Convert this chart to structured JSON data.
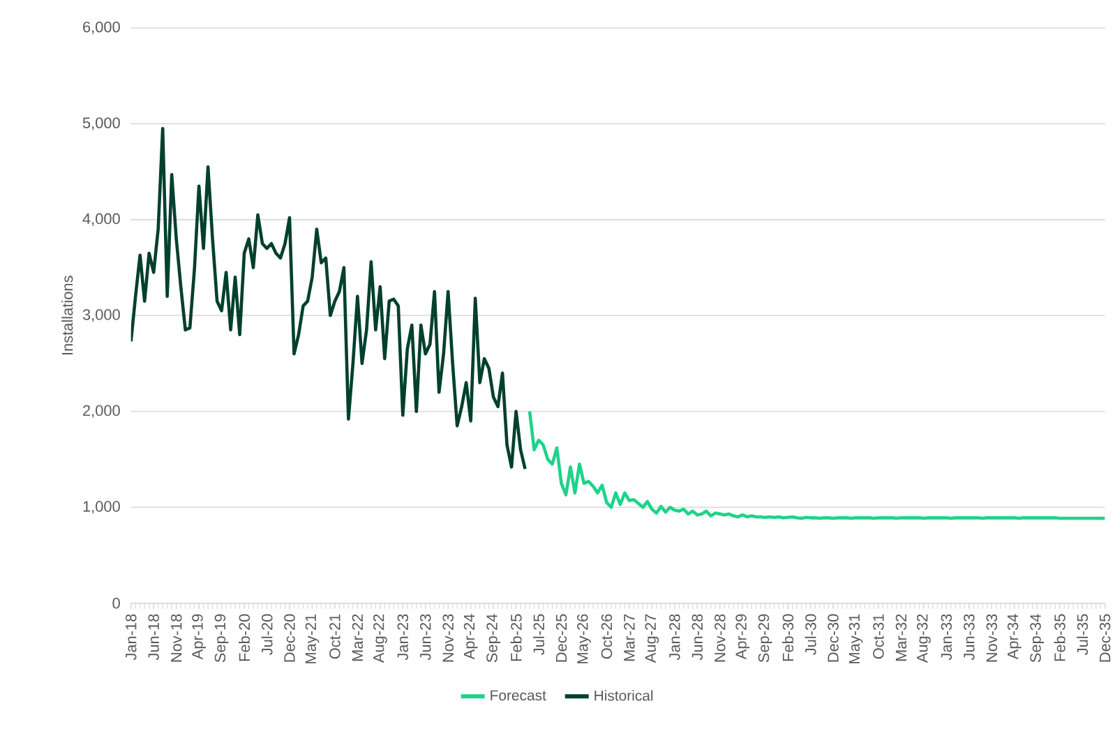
{
  "chart_data": {
    "type": "line",
    "ylabel": "Installations",
    "xlim": [
      "2018-01",
      "2035-12"
    ],
    "ylim": [
      0,
      6000
    ],
    "yticks": [
      {
        "value": 0,
        "label": "0"
      },
      {
        "value": 1000,
        "label": "1,000"
      },
      {
        "value": 2000,
        "label": "2,000"
      },
      {
        "value": 3000,
        "label": "3,000"
      },
      {
        "value": 4000,
        "label": "4,000"
      },
      {
        "value": 5000,
        "label": "5,000"
      },
      {
        "value": 6000,
        "label": "6,000"
      }
    ],
    "xticks": [
      {
        "value": "2018-01",
        "label": "Jan-18"
      },
      {
        "value": "2018-06",
        "label": "Jun-18"
      },
      {
        "value": "2018-11",
        "label": "Nov-18"
      },
      {
        "value": "2019-04",
        "label": "Apr-19"
      },
      {
        "value": "2019-09",
        "label": "Sep-19"
      },
      {
        "value": "2020-02",
        "label": "Feb-20"
      },
      {
        "value": "2020-07",
        "label": "Jul-20"
      },
      {
        "value": "2020-12",
        "label": "Dec-20"
      },
      {
        "value": "2021-05",
        "label": "May-21"
      },
      {
        "value": "2021-10",
        "label": "Oct-21"
      },
      {
        "value": "2022-03",
        "label": "Mar-22"
      },
      {
        "value": "2022-08",
        "label": "Aug-22"
      },
      {
        "value": "2023-01",
        "label": "Jan-23"
      },
      {
        "value": "2023-06",
        "label": "Jun-23"
      },
      {
        "value": "2023-11",
        "label": "Nov-23"
      },
      {
        "value": "2024-04",
        "label": "Apr-24"
      },
      {
        "value": "2024-09",
        "label": "Sep-24"
      },
      {
        "value": "2025-02",
        "label": "Feb-25"
      },
      {
        "value": "2025-07",
        "label": "Jul-25"
      },
      {
        "value": "2025-12",
        "label": "Dec-25"
      },
      {
        "value": "2026-05",
        "label": "May-26"
      },
      {
        "value": "2026-10",
        "label": "Oct-26"
      },
      {
        "value": "2027-03",
        "label": "Mar-27"
      },
      {
        "value": "2027-08",
        "label": "Aug-27"
      },
      {
        "value": "2028-01",
        "label": "Jan-28"
      },
      {
        "value": "2028-06",
        "label": "Jun-28"
      },
      {
        "value": "2028-11",
        "label": "Nov-28"
      },
      {
        "value": "2029-04",
        "label": "Apr-29"
      },
      {
        "value": "2029-09",
        "label": "Sep-29"
      },
      {
        "value": "2030-02",
        "label": "Feb-30"
      },
      {
        "value": "2030-07",
        "label": "Jul-30"
      },
      {
        "value": "2030-12",
        "label": "Dec-30"
      },
      {
        "value": "2031-05",
        "label": "May-31"
      },
      {
        "value": "2031-10",
        "label": "Oct-31"
      },
      {
        "value": "2032-03",
        "label": "Mar-32"
      },
      {
        "value": "2032-08",
        "label": "Aug-32"
      },
      {
        "value": "2033-01",
        "label": "Jan-33"
      },
      {
        "value": "2033-06",
        "label": "Jun-33"
      },
      {
        "value": "2033-11",
        "label": "Nov-33"
      },
      {
        "value": "2034-04",
        "label": "Apr-34"
      },
      {
        "value": "2034-09",
        "label": "Sep-34"
      },
      {
        "value": "2035-02",
        "label": "Feb-35"
      },
      {
        "value": "2035-07",
        "label": "Jul-35"
      },
      {
        "value": "2035-12",
        "label": "Dec-35"
      }
    ],
    "grid": "y",
    "legend": "bottom",
    "line_style": "solid",
    "marker": "none",
    "series": [
      {
        "name": "Forecast",
        "color": "#1ed38a",
        "x": [
          "2025-05",
          "2025-06",
          "2025-07",
          "2025-08",
          "2025-09",
          "2025-10",
          "2025-11",
          "2025-12",
          "2026-01",
          "2026-02",
          "2026-03",
          "2026-04",
          "2026-05",
          "2026-06",
          "2026-07",
          "2026-08",
          "2026-09",
          "2026-10",
          "2026-11",
          "2026-12",
          "2027-01",
          "2027-02",
          "2027-03",
          "2027-04",
          "2027-05",
          "2027-06",
          "2027-07",
          "2027-08",
          "2027-09",
          "2027-10",
          "2027-11",
          "2027-12",
          "2028-01",
          "2028-02",
          "2028-03",
          "2028-04",
          "2028-05",
          "2028-06",
          "2028-07",
          "2028-08",
          "2028-09",
          "2028-10",
          "2028-11",
          "2028-12",
          "2029-01",
          "2029-02",
          "2029-03",
          "2029-04",
          "2029-05",
          "2029-06",
          "2029-07",
          "2029-08",
          "2029-09",
          "2029-10",
          "2029-11",
          "2029-12",
          "2030-01",
          "2030-02",
          "2030-03",
          "2030-04",
          "2030-05",
          "2030-06",
          "2030-07",
          "2030-08",
          "2030-09",
          "2030-10",
          "2030-11",
          "2030-12",
          "2031-01",
          "2031-02",
          "2031-03",
          "2031-04",
          "2031-05",
          "2031-06",
          "2031-07",
          "2031-08",
          "2031-09",
          "2031-10",
          "2031-11",
          "2031-12",
          "2032-01",
          "2032-02",
          "2032-03",
          "2032-04",
          "2032-05",
          "2032-06",
          "2032-07",
          "2032-08",
          "2032-09",
          "2032-10",
          "2032-11",
          "2032-12",
          "2033-01",
          "2033-02",
          "2033-03",
          "2033-04",
          "2033-05",
          "2033-06",
          "2033-07",
          "2033-08",
          "2033-09",
          "2033-10",
          "2033-11",
          "2033-12",
          "2034-01",
          "2034-02",
          "2034-03",
          "2034-04",
          "2034-05",
          "2034-06",
          "2034-07",
          "2034-08",
          "2034-09",
          "2034-10",
          "2034-11",
          "2034-12",
          "2035-01",
          "2035-02",
          "2035-03",
          "2035-04",
          "2035-05",
          "2035-06",
          "2035-07",
          "2035-08",
          "2035-09",
          "2035-10",
          "2035-11",
          "2035-12"
        ],
        "values": [
          2000,
          1600,
          1700,
          1650,
          1500,
          1450,
          1620,
          1250,
          1130,
          1420,
          1150,
          1450,
          1250,
          1270,
          1220,
          1150,
          1230,
          1050,
          1000,
          1150,
          1030,
          1150,
          1070,
          1080,
          1040,
          1000,
          1060,
          980,
          940,
          1010,
          950,
          1000,
          970,
          960,
          980,
          930,
          960,
          920,
          930,
          960,
          910,
          940,
          930,
          920,
          930,
          910,
          900,
          920,
          900,
          910,
          900,
          900,
          895,
          900,
          895,
          900,
          890,
          895,
          900,
          890,
          885,
          895,
          890,
          890,
          885,
          890,
          890,
          885,
          890,
          890,
          890,
          885,
          890,
          890,
          890,
          890,
          885,
          890,
          890,
          890,
          890,
          885,
          890,
          890,
          890,
          890,
          890,
          885,
          890,
          890,
          890,
          890,
          890,
          885,
          890,
          890,
          890,
          890,
          890,
          890,
          885,
          890,
          890,
          890,
          890,
          890,
          890,
          890,
          885,
          890,
          890,
          890,
          890,
          890,
          890,
          890,
          890,
          885,
          885,
          885,
          885,
          885,
          885,
          885,
          885,
          885,
          885,
          885
        ]
      },
      {
        "name": "Historical",
        "color": "#01402e",
        "x": [
          "2018-01",
          "2018-02",
          "2018-03",
          "2018-04",
          "2018-05",
          "2018-06",
          "2018-07",
          "2018-08",
          "2018-09",
          "2018-10",
          "2018-11",
          "2018-12",
          "2019-01",
          "2019-02",
          "2019-03",
          "2019-04",
          "2019-05",
          "2019-06",
          "2019-07",
          "2019-08",
          "2019-09",
          "2019-10",
          "2019-11",
          "2019-12",
          "2020-01",
          "2020-02",
          "2020-03",
          "2020-04",
          "2020-05",
          "2020-06",
          "2020-07",
          "2020-08",
          "2020-09",
          "2020-10",
          "2020-11",
          "2020-12",
          "2021-01",
          "2021-02",
          "2021-03",
          "2021-04",
          "2021-05",
          "2021-06",
          "2021-07",
          "2021-08",
          "2021-09",
          "2021-10",
          "2021-11",
          "2021-12",
          "2022-01",
          "2022-02",
          "2022-03",
          "2022-04",
          "2022-05",
          "2022-06",
          "2022-07",
          "2022-08",
          "2022-09",
          "2022-10",
          "2022-11",
          "2022-12",
          "2023-01",
          "2023-02",
          "2023-03",
          "2023-04",
          "2023-05",
          "2023-06",
          "2023-07",
          "2023-08",
          "2023-09",
          "2023-10",
          "2023-11",
          "2023-12",
          "2024-01",
          "2024-02",
          "2024-03",
          "2024-04",
          "2024-05",
          "2024-06",
          "2024-07",
          "2024-08",
          "2024-09",
          "2024-10",
          "2024-11",
          "2024-12",
          "2025-01",
          "2025-02",
          "2025-03",
          "2025-04"
        ],
        "values": [
          2730,
          3200,
          3630,
          3150,
          3650,
          3450,
          3900,
          4950,
          3200,
          4470,
          3800,
          3300,
          2850,
          2870,
          3480,
          4350,
          3700,
          4550,
          3800,
          3150,
          3050,
          3450,
          2850,
          3400,
          2800,
          3650,
          3800,
          3500,
          4050,
          3750,
          3700,
          3750,
          3650,
          3600,
          3750,
          4020,
          2600,
          2800,
          3100,
          3150,
          3400,
          3900,
          3550,
          3600,
          3000,
          3150,
          3250,
          3500,
          1920,
          2500,
          3200,
          2500,
          2850,
          3560,
          2850,
          3300,
          2550,
          3150,
          3170,
          3100,
          1960,
          2650,
          2900,
          2000,
          2900,
          2600,
          2700,
          3250,
          2200,
          2600,
          3250,
          2500,
          1850,
          2050,
          2300,
          1900,
          3180,
          2300,
          2550,
          2450,
          2150,
          2050,
          2400,
          1650,
          1420,
          2000,
          1600,
          1400
        ]
      }
    ]
  }
}
